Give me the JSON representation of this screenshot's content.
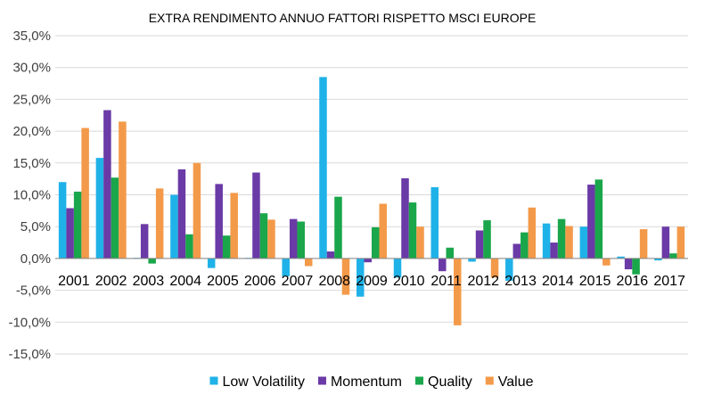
{
  "chart_data": {
    "type": "bar",
    "title": "EXTRA RENDIMENTO ANNUO FATTORI RISPETTO MSCI EUROPE",
    "xlabel": "",
    "ylabel": "",
    "ylim": [
      -15,
      35
    ],
    "yticks": [
      35,
      30,
      25,
      20,
      15,
      10,
      5,
      0,
      -5,
      -10,
      -15
    ],
    "ytick_labels": [
      "35,0%",
      "30,0%",
      "25,0%",
      "20,0%",
      "15,0%",
      "10,0%",
      "5,0%",
      "0,0%",
      "-5,0%",
      "-10,0%",
      "-15,0%"
    ],
    "grid": true,
    "legend_position": "bottom",
    "categories": [
      "2001",
      "2002",
      "2003",
      "2004",
      "2005",
      "2006",
      "2007",
      "2008",
      "2009",
      "2010",
      "2011",
      "2012",
      "2013",
      "2014",
      "2015",
      "2016",
      "2017"
    ],
    "series": [
      {
        "name": "Low Volatility",
        "color": "#1fb2e8",
        "values": [
          12.0,
          15.8,
          0.1,
          10.0,
          -1.5,
          0.1,
          -2.8,
          28.5,
          -6.0,
          -3.0,
          11.2,
          -0.5,
          -3.5,
          5.5,
          5.0,
          0.3,
          -0.3
        ]
      },
      {
        "name": "Momentum",
        "color": "#6a3aa6",
        "values": [
          7.9,
          23.3,
          5.4,
          14.0,
          11.7,
          13.5,
          6.2,
          1.1,
          -0.6,
          12.6,
          -2.0,
          4.4,
          2.3,
          2.5,
          11.6,
          -1.7,
          5.0
        ]
      },
      {
        "name": "Quality",
        "color": "#1aa64a",
        "values": [
          10.5,
          12.7,
          -0.8,
          3.8,
          3.6,
          7.1,
          5.8,
          9.7,
          4.9,
          8.8,
          1.7,
          6.0,
          4.1,
          6.2,
          12.4,
          -2.5,
          0.8
        ]
      },
      {
        "name": "Value",
        "color": "#f39a4a",
        "values": [
          20.5,
          21.5,
          11.0,
          15.0,
          10.3,
          6.1,
          -1.2,
          -5.7,
          8.6,
          5.0,
          -10.5,
          -3.0,
          8.0,
          5.1,
          -1.1,
          4.6,
          5.0
        ]
      }
    ]
  }
}
